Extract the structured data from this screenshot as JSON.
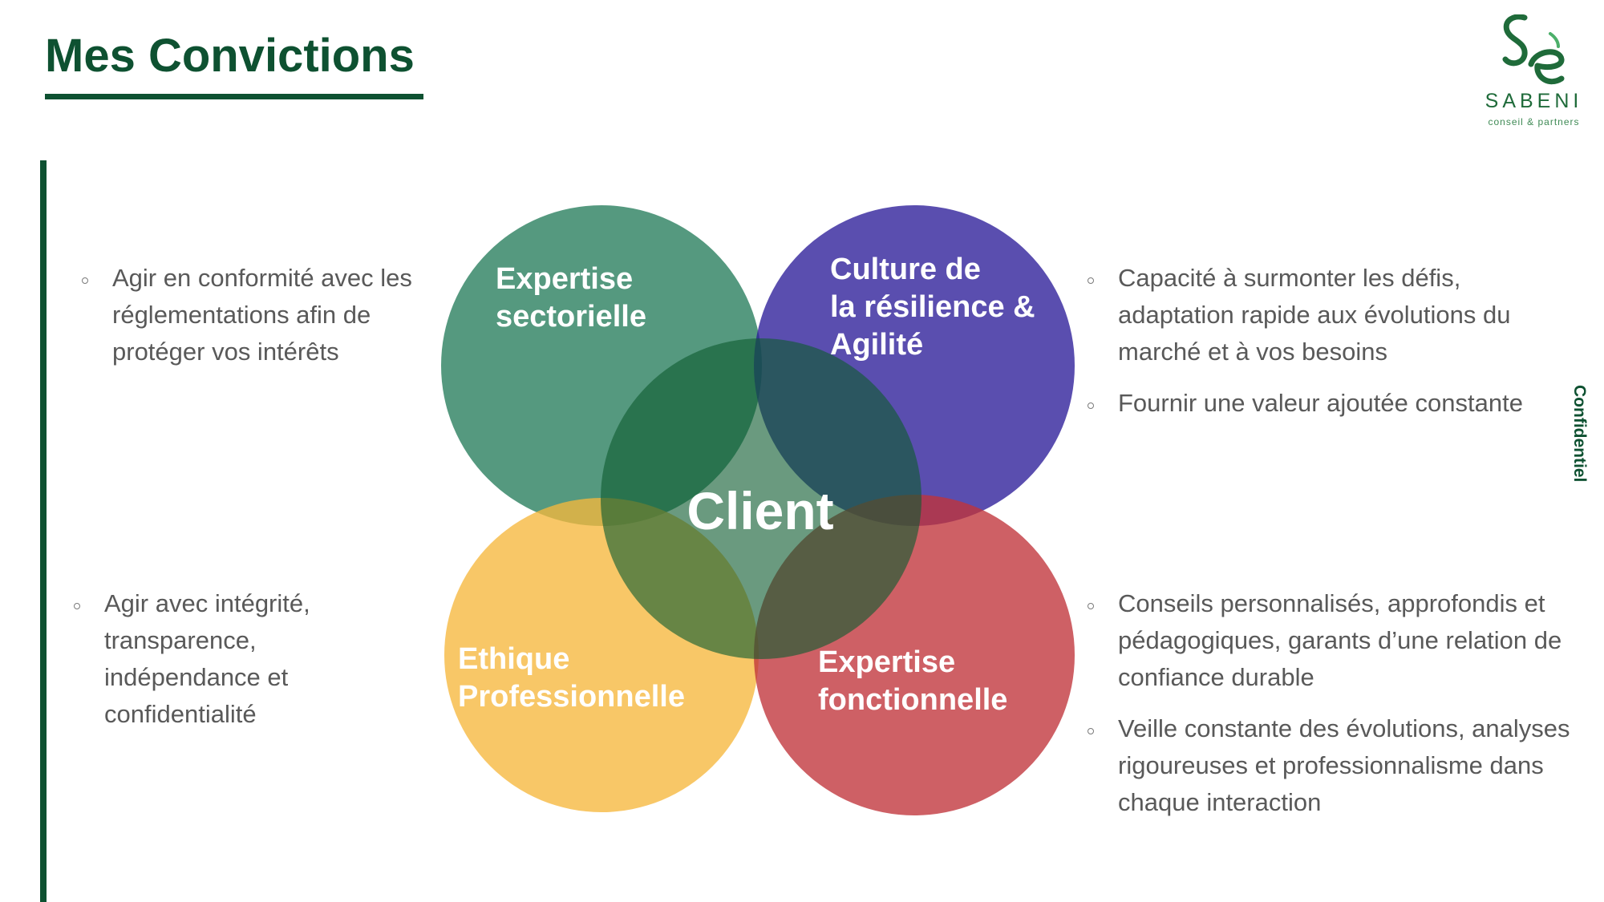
{
  "header": {
    "title": "Mes Convictions"
  },
  "logo": {
    "name": "SABENI",
    "tagline": "conseil & partners"
  },
  "sidebar": {
    "confidential_label": "Confidentiel"
  },
  "diagram": {
    "center_label": "Client",
    "circles": [
      {
        "label_lines": [
          "Expertise",
          "sectorielle"
        ],
        "color": "#2a7f5f"
      },
      {
        "label_lines": [
          "Culture de",
          "la résilience &",
          "Agilité"
        ],
        "color": "#2c1c99"
      },
      {
        "label_lines": [
          "Ethique",
          "Professionnelle"
        ],
        "color": "#f6b73c"
      },
      {
        "label_lines": [
          "Expertise",
          "fonctionnelle"
        ],
        "color": "#c0333a"
      }
    ],
    "center_color": "#0e5c31"
  },
  "bullets": {
    "top_left": [
      "Agir en conformité avec les réglementations afin de protéger vos intérêts"
    ],
    "bottom_left": [
      "Agir avec intégrité, transparence, indépendance et confidentialité"
    ],
    "top_right": [
      "Capacité à surmonter les défis, adaptation rapide aux évolutions du marché et à vos besoins",
      "Fournir une valeur ajoutée constante"
    ],
    "bottom_right": [
      "Conseils personnalisés, approfondis et pédagogiques, garants d’une relation de confiance durable",
      "Veille constante des évolutions, analyses rigoureuses et professionnalisme dans chaque interaction"
    ]
  }
}
